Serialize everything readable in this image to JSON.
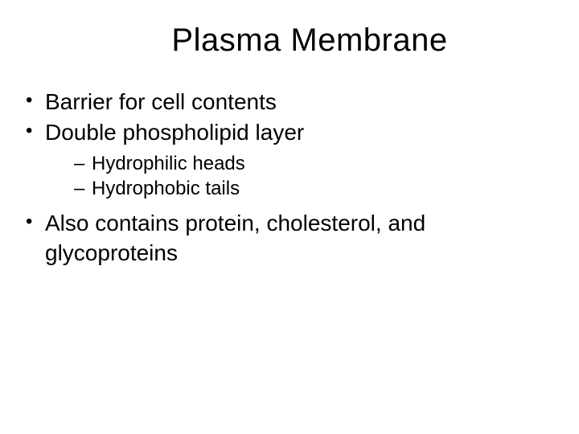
{
  "slide": {
    "title": "Plasma Membrane",
    "bullets": [
      {
        "text": "Barrier for cell contents"
      },
      {
        "text": "Double phospholipid layer",
        "sub": [
          {
            "text": "Hydrophilic heads"
          },
          {
            "text": "Hydrophobic tails"
          }
        ]
      },
      {
        "text": "Also contains protein, cholesterol, and glycoproteins"
      }
    ]
  },
  "style": {
    "background_color": "#ffffff",
    "text_color": "#000000",
    "font_family": "Arial",
    "title_fontsize": 40,
    "bullet_fontsize": 28,
    "subbullet_fontsize": 24,
    "bullet_marker": "•",
    "subbullet_marker": "–"
  }
}
